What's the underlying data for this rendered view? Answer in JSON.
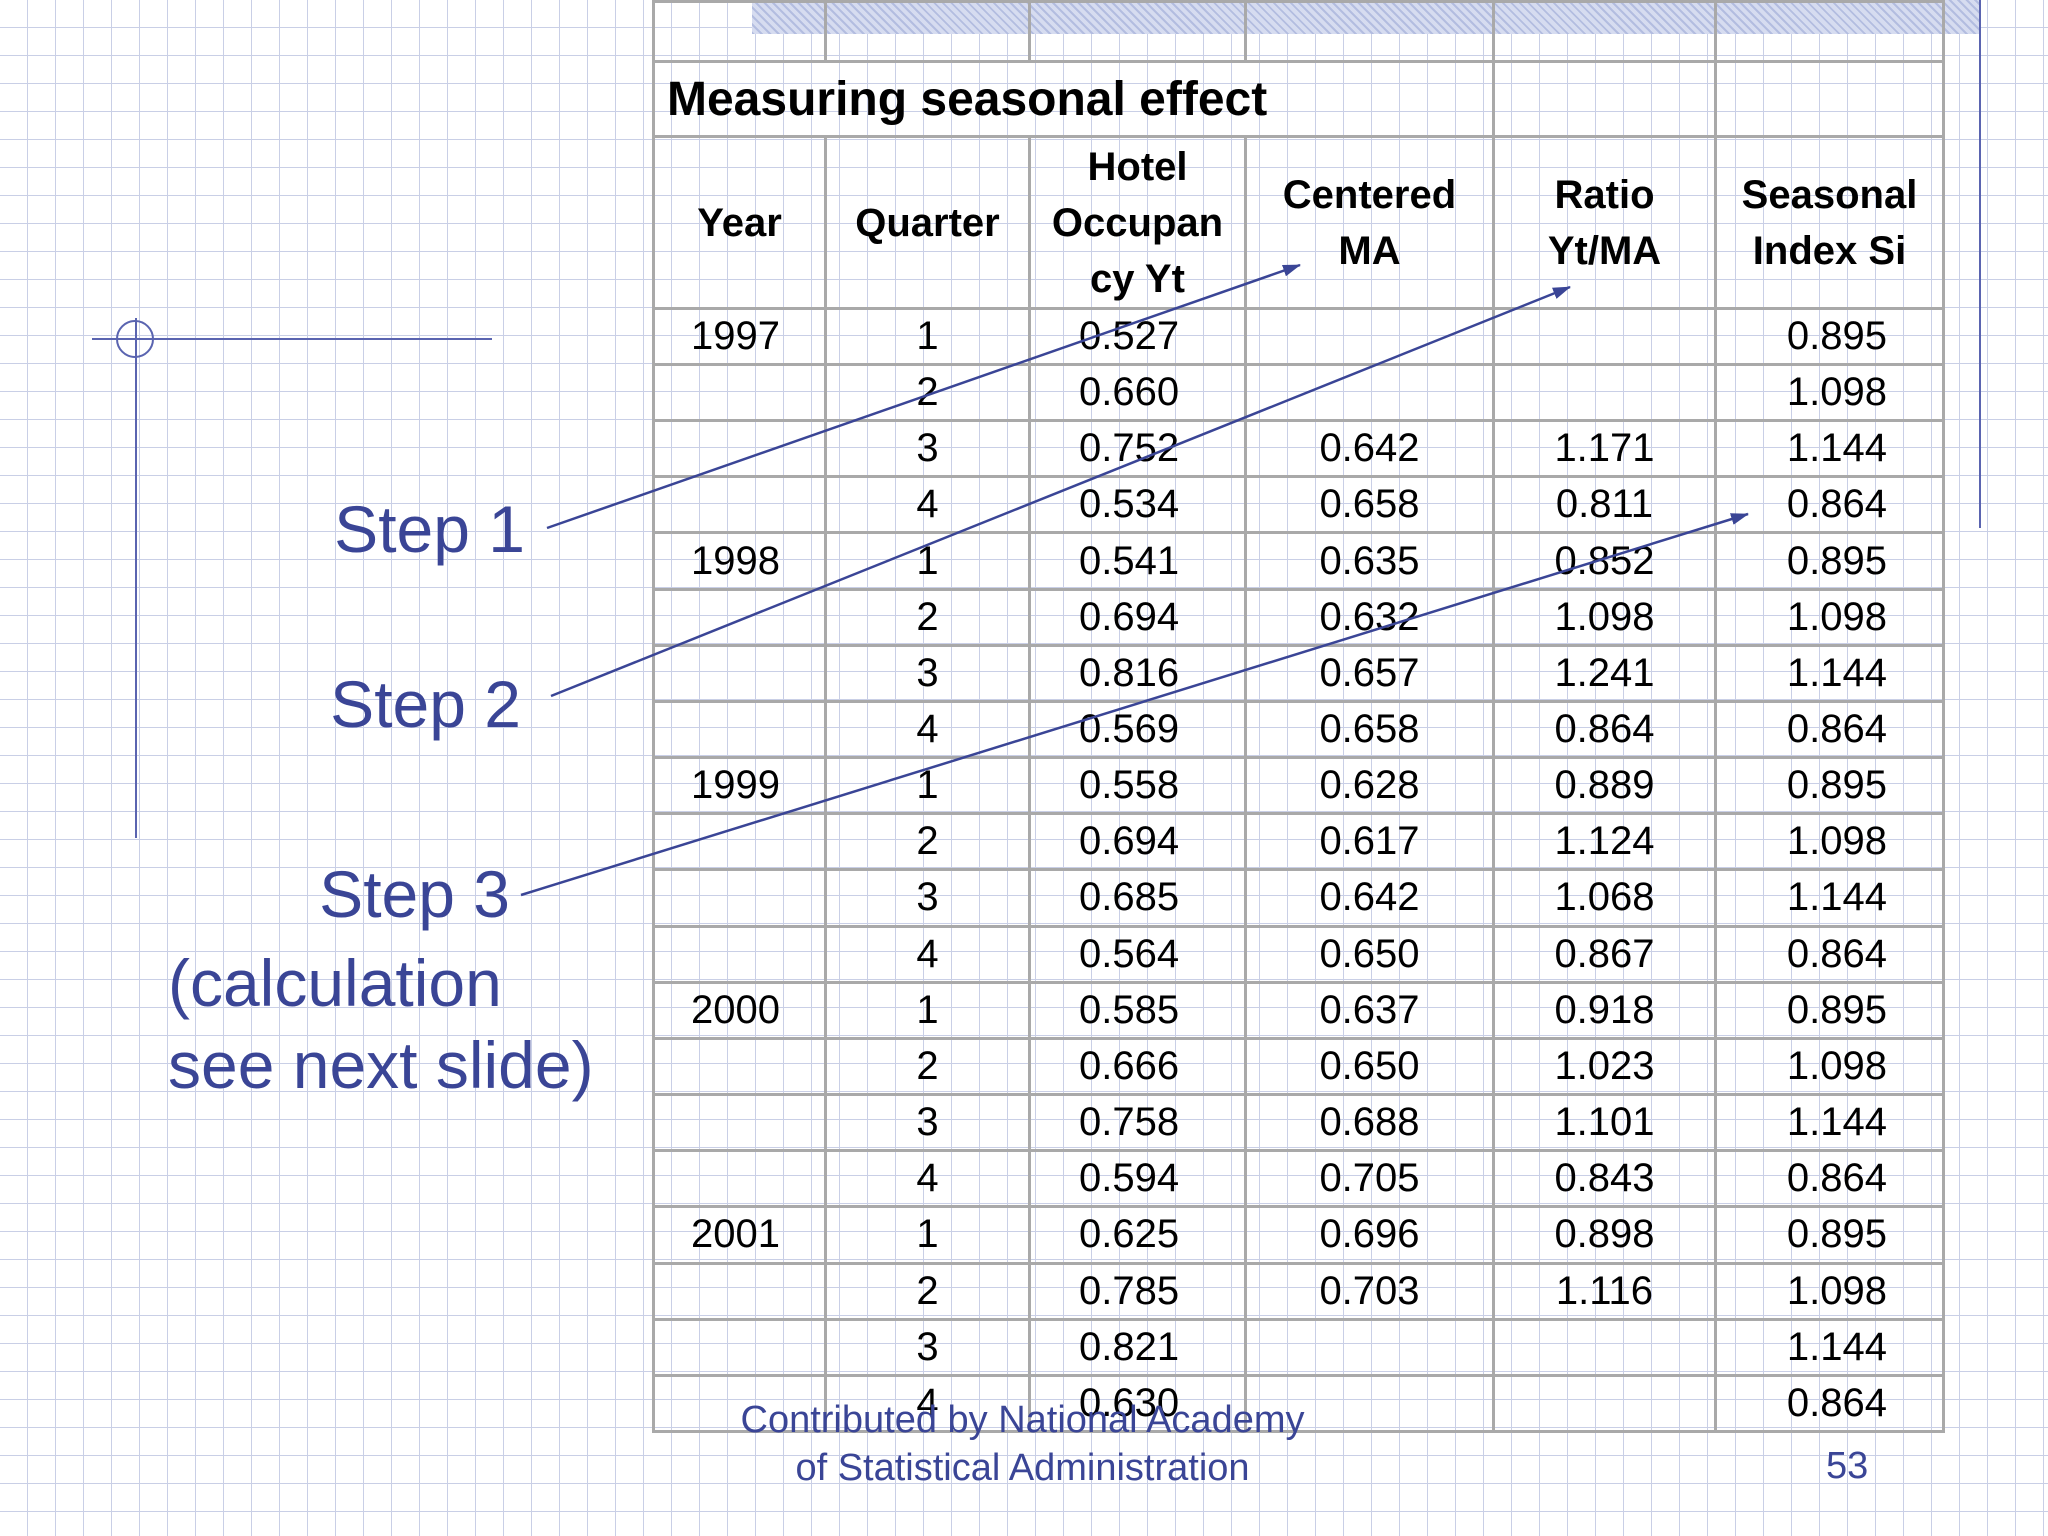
{
  "slide": {
    "table_title": "Measuring seasonal effect",
    "headers": {
      "year": "Year",
      "quarter": "Quarter",
      "hotel_line1": "Hotel",
      "hotel_line2": "Occupan",
      "hotel_line3": "cy Yt",
      "ma_line1": "Centered",
      "ma_line2": "MA",
      "ratio_line1": "Ratio",
      "ratio_line2": "Yt/MA",
      "si_line1": "Seasonal",
      "si_line2": "Index Si"
    },
    "rows": [
      {
        "year": "1997",
        "quarter": "1",
        "hotel": "0.527",
        "ma": "",
        "ratio": "",
        "si": "0.895"
      },
      {
        "year": "",
        "quarter": "2",
        "hotel": "0.660",
        "ma": "",
        "ratio": "",
        "si": "1.098"
      },
      {
        "year": "",
        "quarter": "3",
        "hotel": "0.752",
        "ma": "0.642",
        "ratio": "1.171",
        "si": "1.144"
      },
      {
        "year": "",
        "quarter": "4",
        "hotel": "0.534",
        "ma": "0.658",
        "ratio": "0.811",
        "si": "0.864"
      },
      {
        "year": "1998",
        "quarter": "1",
        "hotel": "0.541",
        "ma": "0.635",
        "ratio": "0.852",
        "si": "0.895"
      },
      {
        "year": "",
        "quarter": "2",
        "hotel": "0.694",
        "ma": "0.632",
        "ratio": "1.098",
        "si": "1.098"
      },
      {
        "year": "",
        "quarter": "3",
        "hotel": "0.816",
        "ma": "0.657",
        "ratio": "1.241",
        "si": "1.144"
      },
      {
        "year": "",
        "quarter": "4",
        "hotel": "0.569",
        "ma": "0.658",
        "ratio": "0.864",
        "si": "0.864"
      },
      {
        "year": "1999",
        "quarter": "1",
        "hotel": "0.558",
        "ma": "0.628",
        "ratio": "0.889",
        "si": "0.895"
      },
      {
        "year": "",
        "quarter": "2",
        "hotel": "0.694",
        "ma": "0.617",
        "ratio": "1.124",
        "si": "1.098"
      },
      {
        "year": "",
        "quarter": "3",
        "hotel": "0.685",
        "ma": "0.642",
        "ratio": "1.068",
        "si": "1.144"
      },
      {
        "year": "",
        "quarter": "4",
        "hotel": "0.564",
        "ma": "0.650",
        "ratio": "0.867",
        "si": "0.864"
      },
      {
        "year": "2000",
        "quarter": "1",
        "hotel": "0.585",
        "ma": "0.637",
        "ratio": "0.918",
        "si": "0.895"
      },
      {
        "year": "",
        "quarter": "2",
        "hotel": "0.666",
        "ma": "0.650",
        "ratio": "1.023",
        "si": "1.098"
      },
      {
        "year": "",
        "quarter": "3",
        "hotel": "0.758",
        "ma": "0.688",
        "ratio": "1.101",
        "si": "1.144"
      },
      {
        "year": "",
        "quarter": "4",
        "hotel": "0.594",
        "ma": "0.705",
        "ratio": "0.843",
        "si": "0.864"
      },
      {
        "year": "2001",
        "quarter": "1",
        "hotel": "0.625",
        "ma": "0.696",
        "ratio": "0.898",
        "si": "0.895"
      },
      {
        "year": "",
        "quarter": "2",
        "hotel": "0.785",
        "ma": "0.703",
        "ratio": "1.116",
        "si": "1.098"
      },
      {
        "year": "",
        "quarter": "3",
        "hotel": "0.821",
        "ma": "",
        "ratio": "",
        "si": "1.144"
      },
      {
        "year": "",
        "quarter": "4",
        "hotel": "0.630",
        "ma": "",
        "ratio": "",
        "si": "0.864"
      }
    ],
    "steps": {
      "step1": "Step 1",
      "step2": "Step 2",
      "step3": "Step 3",
      "step3_line2": "(calculation",
      "step3_line3": "see next slide)"
    },
    "footer": {
      "line1": "Contributed by National Academy",
      "line2": "of Statistical Administration",
      "page_number": "53"
    },
    "colors": {
      "accent": "#3a4596",
      "grid": "#c9cfe6",
      "table_border": "#a9a9a9"
    }
  }
}
